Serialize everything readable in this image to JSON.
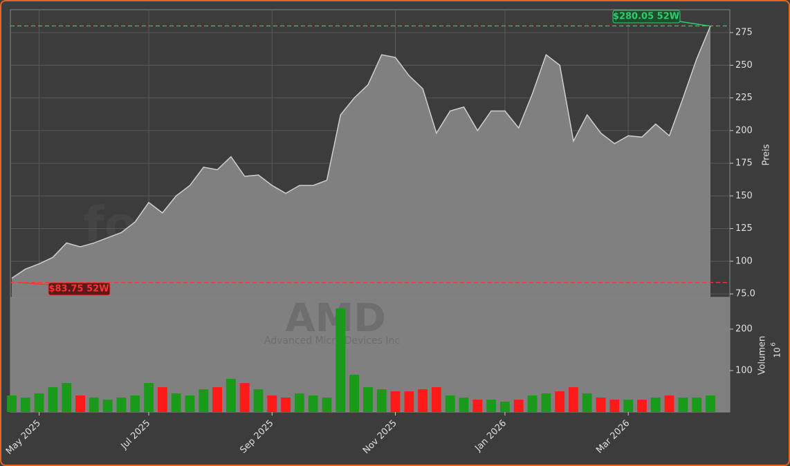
{
  "chart_data": {
    "type": "area",
    "watermark": "forexsignale.trade",
    "symbol": "AMD",
    "company": "Advanced Micro Devices Inc",
    "y_label": "Preis",
    "y2_label": "Volumen",
    "y2_offset_base": "10",
    "y2_offset_exp": "6",
    "categories": [
      null,
      null,
      "May 2025",
      null,
      null,
      null,
      null,
      null,
      null,
      null,
      "Jul 2025",
      null,
      null,
      null,
      null,
      null,
      null,
      null,
      null,
      "Sep 2025",
      null,
      null,
      null,
      null,
      null,
      null,
      null,
      null,
      "Nov 2025",
      null,
      null,
      null,
      null,
      null,
      null,
      null,
      "Jan 2026",
      null,
      null,
      null,
      null,
      null,
      null,
      null,
      null,
      "Mar 2026",
      null,
      null,
      null,
      null,
      null,
      null
    ],
    "values": [
      87,
      94,
      98,
      103,
      114,
      111,
      114,
      118,
      122,
      130,
      145,
      137,
      150,
      158,
      172,
      170,
      180,
      165,
      166,
      158,
      152,
      158,
      158,
      162,
      212,
      225,
      235,
      258,
      256,
      242,
      232,
      198,
      215,
      218,
      200,
      215,
      215,
      202,
      228,
      258,
      250,
      192,
      212,
      198,
      190,
      196,
      195,
      205,
      196,
      225,
      255,
      280
    ],
    "volume": [
      40,
      35,
      45,
      60,
      70,
      40,
      35,
      30,
      35,
      40,
      70,
      60,
      45,
      40,
      55,
      60,
      80,
      70,
      55,
      40,
      35,
      45,
      40,
      35,
      250,
      90,
      60,
      55,
      50,
      50,
      55,
      60,
      40,
      35,
      30,
      30,
      25,
      30,
      40,
      45,
      50,
      60,
      45,
      35,
      30,
      30,
      30,
      35,
      40,
      35,
      35,
      40
    ],
    "area_color": "#808080",
    "line_color": "#d0d0d0",
    "up_color": "#1a9a1a",
    "down_color": "#ff1a1a",
    "ylim": [
      72.4,
      292.5
    ],
    "yticks": [
      {
        "value": 75,
        "label": "75.0"
      },
      100,
      125,
      150,
      175,
      200,
      225,
      250,
      275
    ],
    "y2lim": [
      0,
      276.7
    ],
    "y2ticks": [
      100,
      200
    ],
    "grid": true,
    "high_line": {
      "value": 280.05,
      "label": "$280.05 52W",
      "color": "#2ecc71"
    },
    "low_line": {
      "value": 83.75,
      "label": "$83.75 52W",
      "color": "#ff3333"
    }
  }
}
